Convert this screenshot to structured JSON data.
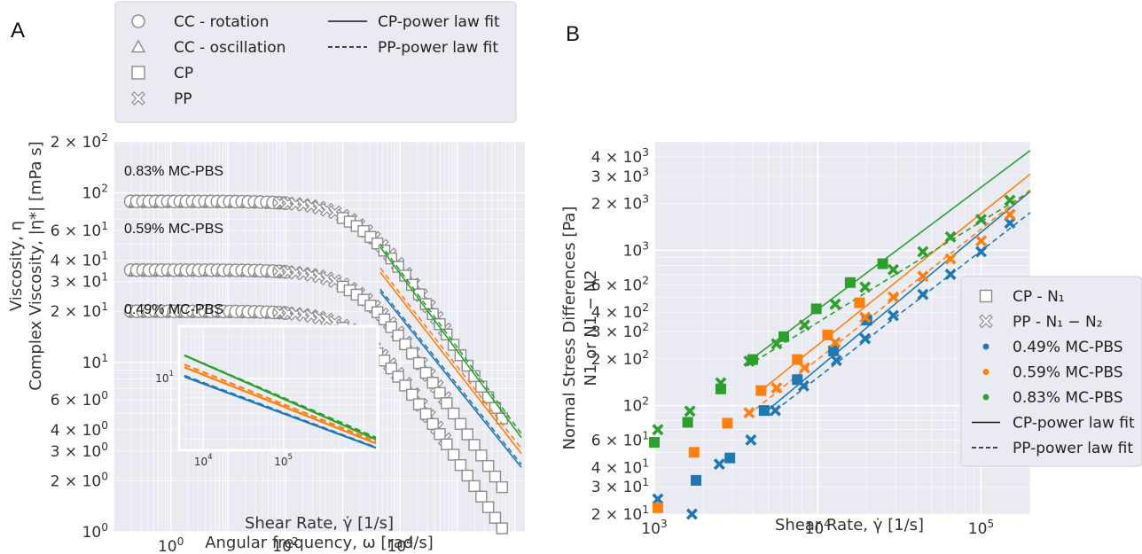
{
  "colors": {
    "blue": "#1f77b4",
    "orange": "#ff7f0e",
    "green": "#2ca02c",
    "plot_bg": "#eaeaf2",
    "grid": "#ffffff"
  },
  "chart_data": [
    {
      "panel": "A",
      "type": "scatter",
      "xlabel": [
        "Shear Rate, γ̇ [1/s]",
        "Angular frequency, ω [rad/s]"
      ],
      "ylabel": [
        "Viscosity, η",
        "Complex Viscosity, |η*| [mPa s]"
      ],
      "xscale": "log",
      "yscale": "log",
      "xlim": [
        0.1,
        1500000
      ],
      "ylim": [
        1,
        200
      ],
      "xticks": [
        "10^0",
        "10^2",
        "10^4"
      ],
      "yticks": [
        "10^0",
        "2 × 10^0",
        "3 × 10^0",
        "4 × 10^0",
        "6 × 10^0",
        "10^1",
        "2 × 10^1",
        "3 × 10^1",
        "4 × 10^1",
        "6 × 10^1",
        "10^2",
        "2 × 10^2"
      ],
      "grid": true,
      "legend": {
        "placement": "top",
        "entries": [
          {
            "label": "CC - rotation",
            "marker": "circle"
          },
          {
            "label": "CC - oscillation",
            "marker": "triangle"
          },
          {
            "label": "CP",
            "marker": "square"
          },
          {
            "label": "PP",
            "marker": "x"
          },
          {
            "label": "CP-power law fit",
            "line": "solid"
          },
          {
            "label": "PP-power law fit",
            "line": "dashed"
          }
        ]
      },
      "annotations": [
        "0.83% MC-PBS",
        "0.59% MC-PBS",
        "0.49% MC-PBS"
      ],
      "series": [
        {
          "name": "0.83% MC-PBS",
          "color": "green",
          "plateau": 89,
          "cc_x": [
            0.2,
            100
          ],
          "cp_x": [
            1000,
            600000
          ],
          "pp_x": [
            80,
            60000
          ],
          "cp_fit": {
            "x": [
              4500,
              1300000
            ],
            "y": [
              48,
              3.6
            ]
          },
          "pp_fit": {
            "x": [
              4500,
              1300000
            ],
            "y": [
              50,
              3.8
            ]
          }
        },
        {
          "name": "0.59% MC-PBS",
          "color": "orange",
          "plateau": 35,
          "cc_x": [
            0.2,
            100
          ],
          "cp_x": [
            1000,
            600000
          ],
          "pp_x": [
            80,
            60000
          ],
          "cp_fit": {
            "x": [
              4500,
              1300000
            ],
            "y": [
              34,
              2.9
            ]
          },
          "pp_fit": {
            "x": [
              4500,
              1300000
            ],
            "y": [
              36,
              3.1
            ]
          }
        },
        {
          "name": "0.49% MC-PBS",
          "color": "blue",
          "plateau": 20,
          "cc_x": [
            0.2,
            100
          ],
          "cp_x": [
            1000,
            600000
          ],
          "pp_x": [
            80,
            60000
          ],
          "cp_fit": {
            "x": [
              4500,
              1300000
            ],
            "y": [
              26,
              2.4
            ]
          },
          "pp_fit": {
            "x": [
              4500,
              1300000
            ],
            "y": [
              27,
              2.5
            ]
          }
        }
      ],
      "inset": {
        "xlim": [
          5000,
          1500000
        ],
        "ylim": [
          1.5,
          40
        ],
        "xticks": [
          "10^4",
          "10^5"
        ],
        "yticks": [
          "10^1"
        ],
        "lines": [
          {
            "color": "green",
            "style": "solid",
            "y": [
              18.5,
              2.0
            ]
          },
          {
            "color": "green",
            "style": "dashed",
            "y": [
              18.5,
              2.1
            ]
          },
          {
            "color": "orange",
            "style": "solid",
            "y": [
              13.5,
              1.8
            ]
          },
          {
            "color": "orange",
            "style": "dashed",
            "y": [
              14.5,
              1.9
            ]
          },
          {
            "color": "blue",
            "style": "solid",
            "y": [
              10.5,
              1.6
            ]
          },
          {
            "color": "blue",
            "style": "dashed",
            "y": [
              10.8,
              1.62
            ]
          }
        ]
      }
    },
    {
      "panel": "B",
      "type": "scatter",
      "xlabel": "Shear Rate, γ̇ [1/s]",
      "ylabel": [
        "Normal Stress Differences [Pa]",
        "N1 or N1 − N2"
      ],
      "xscale": "log",
      "yscale": "log",
      "xlim": [
        1000,
        200000
      ],
      "ylim": [
        20,
        5000
      ],
      "xticks": [
        "10^3",
        "10^4",
        "10^5"
      ],
      "yticks": [
        "2 × 10^1",
        "3 × 10^1",
        "4 × 10^1",
        "6 × 10^1",
        "10^2",
        "2 × 10^2",
        "3 × 10^2",
        "4 × 10^2",
        "6 × 10^2",
        "10^3",
        "2 × 10^3",
        "3 × 10^3",
        "4 × 10^3"
      ],
      "grid": true,
      "legend": {
        "placement": "right",
        "entries": [
          {
            "label": "CP - N1",
            "marker": "square",
            "color": "grey"
          },
          {
            "label": "PP - N1 − N2",
            "marker": "x",
            "color": "grey"
          },
          {
            "label": "0.49% MC-PBS",
            "marker": "dot",
            "color": "blue"
          },
          {
            "label": "0.59% MC-PBS",
            "marker": "dot",
            "color": "orange"
          },
          {
            "label": "0.83% MC-PBS",
            "marker": "dot",
            "color": "green"
          },
          {
            "label": "CP-power law fit",
            "line": "solid"
          },
          {
            "label": "PP-power law fit",
            "line": "dashed"
          }
        ]
      },
      "series": [
        {
          "name": "0.49% MC-PBS CP",
          "color": "blue",
          "marker": "square",
          "x": [
            1800,
            2900,
            4700,
            7500,
            12500,
            20000
          ],
          "y": [
            33,
            46,
            93,
            147,
            225,
            355
          ]
        },
        {
          "name": "0.49% MC-PBS PP",
          "color": "blue",
          "marker": "x",
          "x": [
            1050,
            1700,
            2500,
            3900,
            5500,
            8200,
            13000,
            19500,
            29000,
            44000,
            65000,
            100000,
            150000
          ],
          "y": [
            25,
            20,
            42,
            60,
            93,
            134,
            195,
            270,
            380,
            520,
            700,
            980,
            1500
          ]
        },
        {
          "name": "0.59% MC-PBS CP",
          "color": "orange",
          "marker": "square",
          "x": [
            1050,
            1750,
            2800,
            4500,
            7500,
            11500,
            18000
          ],
          "y": [
            22,
            50,
            77,
            125,
            198,
            285,
            460
          ]
        },
        {
          "name": "0.59% MC-PBS PP",
          "color": "orange",
          "marker": "x",
          "x": [
            3800,
            5600,
            8300,
            12800,
            19500,
            29000,
            44000,
            65000,
            100000,
            150000
          ],
          "y": [
            90,
            130,
            175,
            255,
            370,
            500,
            680,
            880,
            1150,
            1700
          ]
        },
        {
          "name": "0.83% MC-PBS CP",
          "color": "green",
          "marker": "square",
          "x": [
            1000,
            1600,
            2550,
            4000,
            6200,
            9800,
            15800,
            25000
          ],
          "y": [
            58,
            78,
            128,
            198,
            278,
            420,
            620,
            820
          ]
        },
        {
          "name": "0.83% MC-PBS PP",
          "color": "green",
          "marker": "x",
          "x": [
            1050,
            1650,
            2550,
            3800,
            5600,
            8300,
            12800,
            19500,
            29000,
            44000,
            65000,
            100000,
            150000
          ],
          "y": [
            70,
            92,
            140,
            193,
            250,
            330,
            450,
            580,
            750,
            980,
            1220,
            1580,
            2100
          ]
        }
      ],
      "fits": [
        {
          "color": "blue",
          "style": "solid",
          "x": [
            4500,
            200000
          ],
          "y": [
            86,
            2400
          ]
        },
        {
          "color": "blue",
          "style": "dashed",
          "x": [
            5000,
            200000
          ],
          "y": [
            86,
            1750
          ]
        },
        {
          "color": "orange",
          "style": "solid",
          "x": [
            4200,
            200000
          ],
          "y": [
            118,
            3100
          ]
        },
        {
          "color": "orange",
          "style": "dashed",
          "x": [
            3800,
            200000
          ],
          "y": [
            88,
            2450
          ]
        },
        {
          "color": "green",
          "style": "solid",
          "x": [
            3700,
            200000
          ],
          "y": [
            190,
            4400
          ]
        },
        {
          "color": "green",
          "style": "dashed",
          "x": [
            3700,
            200000
          ],
          "y": [
            180,
            2400
          ]
        }
      ]
    }
  ]
}
